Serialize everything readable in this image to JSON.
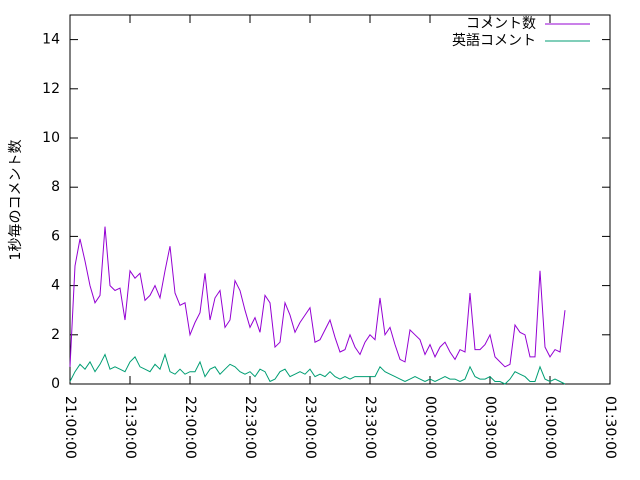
{
  "chart_data": {
    "type": "line",
    "y_label": "1秒毎のコメント数",
    "x": [
      "21:00:00",
      "21:02:30",
      "21:05:00",
      "21:07:30",
      "21:10:00",
      "21:12:30",
      "21:15:00",
      "21:17:30",
      "21:20:00",
      "21:22:30",
      "21:25:00",
      "21:27:30",
      "21:30:00",
      "21:32:30",
      "21:35:00",
      "21:37:30",
      "21:40:00",
      "21:42:30",
      "21:45:00",
      "21:47:30",
      "21:50:00",
      "21:52:30",
      "21:55:00",
      "21:57:30",
      "22:00:00",
      "22:02:30",
      "22:05:00",
      "22:07:30",
      "22:10:00",
      "22:12:30",
      "22:15:00",
      "22:17:30",
      "22:20:00",
      "22:22:30",
      "22:25:00",
      "22:27:30",
      "22:30:00",
      "22:32:30",
      "22:35:00",
      "22:37:30",
      "22:40:00",
      "22:42:30",
      "22:45:00",
      "22:47:30",
      "22:50:00",
      "22:52:30",
      "22:55:00",
      "22:57:30",
      "23:00:00",
      "23:02:30",
      "23:05:00",
      "23:07:30",
      "23:10:00",
      "23:12:30",
      "23:15:00",
      "23:17:30",
      "23:20:00",
      "23:22:30",
      "23:25:00",
      "23:27:30",
      "23:30:00",
      "23:32:30",
      "23:35:00",
      "23:37:30",
      "23:40:00",
      "23:42:30",
      "23:45:00",
      "23:47:30",
      "23:50:00",
      "23:52:30",
      "23:55:00",
      "23:57:30",
      "00:00:00",
      "00:02:30",
      "00:05:00",
      "00:07:30",
      "00:10:00",
      "00:12:30",
      "00:15:00",
      "00:17:30",
      "00:20:00",
      "00:22:30",
      "00:25:00",
      "00:27:30",
      "00:30:00",
      "00:32:30",
      "00:35:00",
      "00:37:30",
      "00:40:00",
      "00:42:30",
      "00:45:00",
      "00:47:30",
      "00:50:00",
      "00:52:30",
      "00:55:00",
      "00:57:30",
      "01:00:00",
      "01:02:30",
      "01:05:00",
      "01:07:30"
    ],
    "series": [
      {
        "name": "コメント数",
        "color": "#9400d3",
        "values": [
          0.7,
          4.8,
          5.9,
          5,
          4,
          3.3,
          3.6,
          6.4,
          4,
          3.8,
          3.9,
          2.6,
          4.6,
          4.3,
          4.5,
          3.4,
          3.6,
          4,
          3.5,
          4.6,
          5.6,
          3.7,
          3.2,
          3.3,
          2,
          2.5,
          2.9,
          4.5,
          2.6,
          3.5,
          3.8,
          2.3,
          2.6,
          4.2,
          3.8,
          3,
          2.3,
          2.7,
          2.1,
          3.6,
          3.3,
          1.5,
          1.7,
          3.3,
          2.8,
          2.1,
          2.5,
          2.8,
          3.1,
          1.7,
          1.8,
          2.2,
          2.6,
          1.9,
          1.3,
          1.4,
          2,
          1.5,
          1.2,
          1.7,
          2,
          1.8,
          3.5,
          2,
          2.3,
          1.6,
          1,
          0.9,
          2.2,
          2,
          1.8,
          1.2,
          1.6,
          1.1,
          1.5,
          1.7,
          1.3,
          1,
          1.4,
          1.3,
          3.7,
          1.4,
          1.4,
          1.6,
          2,
          1.1,
          0.9,
          0.7,
          0.8,
          2.4,
          2.1,
          2,
          1.1,
          1.1,
          4.6,
          1.5,
          1.1,
          1.4,
          1.3,
          3
        ]
      },
      {
        "name": "英語コメント",
        "color": "#009e73",
        "values": [
          0.1,
          0.5,
          0.8,
          0.6,
          0.9,
          0.5,
          0.8,
          1.2,
          0.6,
          0.7,
          0.6,
          0.5,
          0.9,
          1.1,
          0.7,
          0.6,
          0.5,
          0.8,
          0.6,
          1.2,
          0.5,
          0.4,
          0.6,
          0.4,
          0.5,
          0.5,
          0.9,
          0.3,
          0.6,
          0.7,
          0.4,
          0.6,
          0.8,
          0.7,
          0.5,
          0.4,
          0.5,
          0.3,
          0.6,
          0.5,
          0.1,
          0.2,
          0.5,
          0.6,
          0.3,
          0.4,
          0.5,
          0.4,
          0.6,
          0.3,
          0.4,
          0.3,
          0.5,
          0.3,
          0.2,
          0.3,
          0.2,
          0.3,
          0.3,
          0.3,
          0.3,
          0.3,
          0.7,
          0.5,
          0.4,
          0.3,
          0.2,
          0.1,
          0.2,
          0.3,
          0.2,
          0.1,
          0.2,
          0.1,
          0.2,
          0.3,
          0.2,
          0.2,
          0.1,
          0.2,
          0.7,
          0.3,
          0.2,
          0.2,
          0.3,
          0.1,
          0.1,
          0,
          0.2,
          0.5,
          0.4,
          0.3,
          0.1,
          0.1,
          0.7,
          0.2,
          0.1,
          0.2,
          0.1,
          0
        ]
      }
    ],
    "xlim": [
      "21:00:00",
      "01:30:00"
    ],
    "xticks": [
      "21:00:00",
      "21:30:00",
      "22:00:00",
      "22:30:00",
      "23:00:00",
      "23:30:00",
      "00:00:00",
      "00:30:00",
      "01:00:00",
      "01:30:00"
    ],
    "ylim": [
      0,
      15
    ],
    "yticks": [
      0,
      2,
      4,
      6,
      8,
      10,
      12,
      14
    ],
    "legend": "top-right"
  }
}
